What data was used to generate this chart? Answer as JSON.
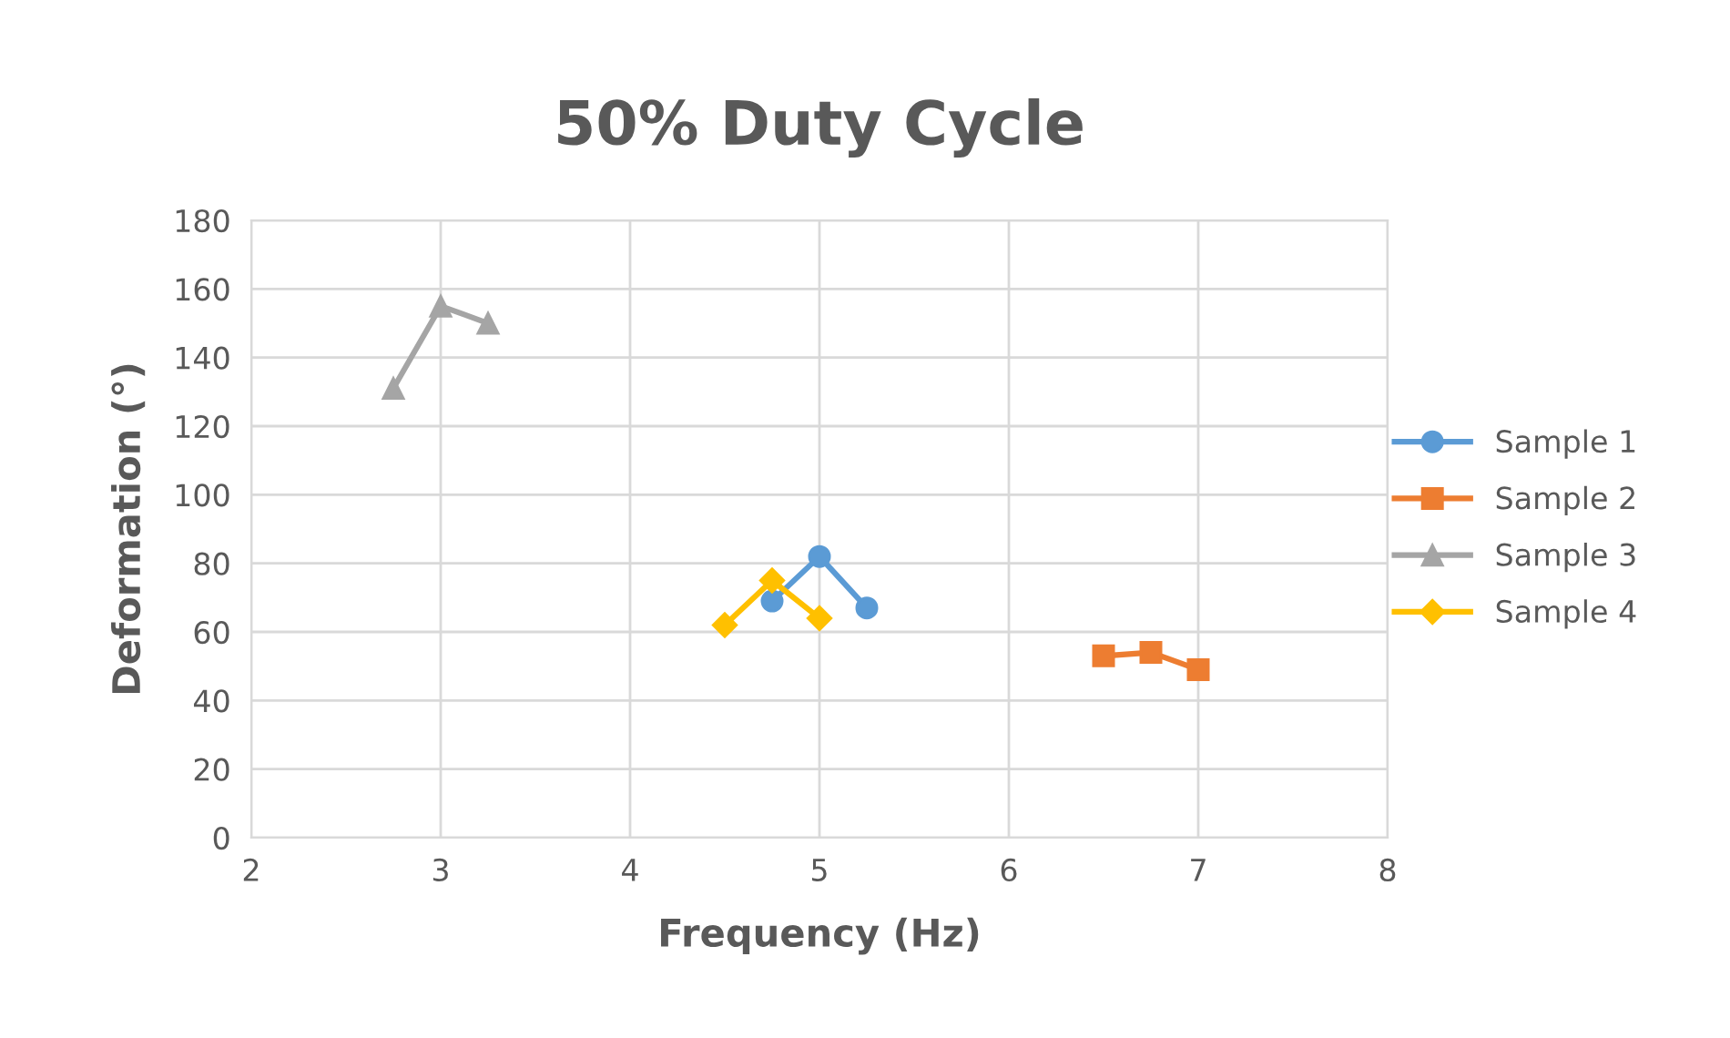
{
  "chart_data": {
    "type": "line",
    "title": "50% Duty Cycle",
    "xlabel": "Frequency (Hz)",
    "ylabel": "Deformation (°)",
    "series": [
      {
        "name": "Sample 1",
        "color": "#5b9bd5",
        "marker": "circle",
        "x": [
          4.75,
          5,
          5.25
        ],
        "values": [
          69,
          82,
          67
        ]
      },
      {
        "name": "Sample 2",
        "color": "#ed7d31",
        "marker": "square",
        "x": [
          6.5,
          6.75,
          7
        ],
        "values": [
          53,
          54,
          49
        ]
      },
      {
        "name": "Sample 3",
        "color": "#a5a5a5",
        "marker": "triangle",
        "x": [
          2.75,
          3,
          3.25
        ],
        "values": [
          131,
          155,
          150
        ]
      },
      {
        "name": "Sample 4",
        "color": "#ffc000",
        "marker": "diamond",
        "x": [
          4.5,
          4.75,
          5
        ],
        "values": [
          62,
          75,
          64
        ]
      }
    ],
    "xlim": [
      2,
      8
    ],
    "xticks": [
      2,
      3,
      4,
      5,
      6,
      7,
      8
    ],
    "ylim": [
      0,
      180
    ],
    "yticks": [
      0,
      20,
      40,
      60,
      80,
      100,
      120,
      140,
      160,
      180
    ],
    "grid": true,
    "legend": "right"
  }
}
